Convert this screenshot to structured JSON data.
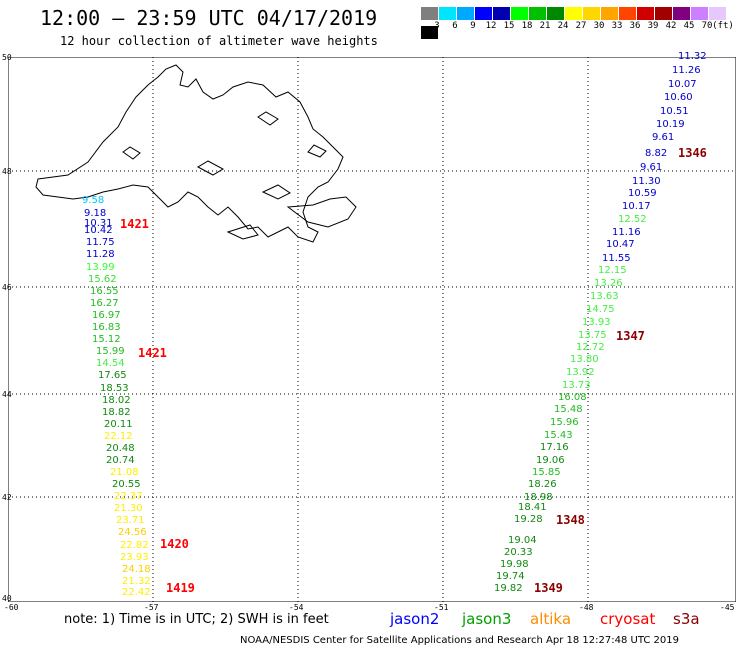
{
  "header": {
    "title": "12:00 – 23:59 UTC 04/17/2019",
    "subtitle": "12 hour collection of altimeter wave heights"
  },
  "colorbar": {
    "unit": "(ft)",
    "colors": [
      "#7f7f7f",
      "#00e5ff",
      "#00a8ff",
      "#0000ff",
      "#0000b0",
      "#00ff00",
      "#00c000",
      "#008800",
      "#ffff00",
      "#ffd700",
      "#ffa500",
      "#ff4500",
      "#d00000",
      "#a00000",
      "#800080",
      "#cc80ff",
      "#e6c8ff",
      "#000000"
    ],
    "labels": [
      "3",
      "6",
      "9",
      "12",
      "15",
      "18",
      "21",
      "24",
      "27",
      "30",
      "33",
      "36",
      "39",
      "42",
      "45",
      "70"
    ]
  },
  "axes": {
    "lat_labels": [
      "50",
      "48",
      "46",
      "44",
      "42",
      "40"
    ],
    "lon_labels": [
      "-60",
      "-57",
      "-54",
      "-51",
      "-48",
      "-45"
    ]
  },
  "tracks": [
    {
      "time": "1421",
      "points": [
        {
          "v": "9.58",
          "c": "#00c8ff"
        },
        {
          "v": "9.18",
          "c": "#0000cc"
        },
        {
          "v": "10.31",
          "c": "#0000cc"
        },
        {
          "v": "10.42",
          "c": "#0000cc"
        },
        {
          "v": "11.75",
          "c": "#0000cc"
        },
        {
          "v": "11.28",
          "c": "#0000cc"
        },
        {
          "v": "13.99",
          "c": "#33ff33"
        },
        {
          "v": "15.62",
          "c": "#33dd33"
        },
        {
          "v": "16.55",
          "c": "#22bb22"
        },
        {
          "v": "16.27",
          "c": "#22bb22"
        },
        {
          "v": "16.97",
          "c": "#22bb22"
        },
        {
          "v": "16.83",
          "c": "#22bb22"
        },
        {
          "v": "15.12",
          "c": "#22bb22"
        },
        {
          "v": "15.99",
          "c": "#22bb22"
        },
        {
          "v": "14.54",
          "c": "#44ee44"
        },
        {
          "v": "17.65",
          "c": "#118811"
        },
        {
          "v": "18.53",
          "c": "#118811"
        },
        {
          "v": "18.02",
          "c": "#118811"
        },
        {
          "v": "18.82",
          "c": "#118811"
        },
        {
          "v": "20.11",
          "c": "#118811"
        },
        {
          "v": "22.12",
          "c": "#ffee00"
        },
        {
          "v": "20.48",
          "c": "#118811"
        },
        {
          "v": "20.74",
          "c": "#118811"
        },
        {
          "v": "21.08",
          "c": "#ffee00"
        },
        {
          "v": "20.55",
          "c": "#118811"
        },
        {
          "v": "22.37",
          "c": "#ffee00"
        },
        {
          "v": "21.30",
          "c": "#ffee00"
        },
        {
          "v": "23.71",
          "c": "#ffee00"
        },
        {
          "v": "24.56",
          "c": "#ffcc00"
        },
        {
          "v": "22.82",
          "c": "#ffee00"
        },
        {
          "v": "23.93",
          "c": "#ffee00"
        },
        {
          "v": "24.18",
          "c": "#ffcc00"
        },
        {
          "v": "21.32",
          "c": "#ffee00"
        },
        {
          "v": "22.42",
          "c": "#ffee00"
        }
      ]
    },
    {
      "time": "1347",
      "points": [
        {
          "v": "11.32",
          "c": "#0000cc"
        },
        {
          "v": "11.26",
          "c": "#0000cc"
        },
        {
          "v": "10.07",
          "c": "#0000cc"
        },
        {
          "v": "10.60",
          "c": "#0000cc"
        },
        {
          "v": "10.51",
          "c": "#0000cc"
        },
        {
          "v": "10.19",
          "c": "#0000cc"
        },
        {
          "v": "9.61",
          "c": "#0000cc"
        },
        {
          "v": "8.82",
          "c": "#0000cc"
        },
        {
          "v": "9.61",
          "c": "#0000cc"
        },
        {
          "v": "11.30",
          "c": "#0000cc"
        },
        {
          "v": "10.59",
          "c": "#0000cc"
        },
        {
          "v": "10.17",
          "c": "#0000cc"
        },
        {
          "v": "12.52",
          "c": "#44ee44"
        },
        {
          "v": "11.16",
          "c": "#0000cc"
        },
        {
          "v": "10.47",
          "c": "#0000cc"
        },
        {
          "v": "11.55",
          "c": "#0000cc"
        },
        {
          "v": "12.15",
          "c": "#44ee44"
        },
        {
          "v": "13.26",
          "c": "#44ee44"
        },
        {
          "v": "13.63",
          "c": "#44ee44"
        },
        {
          "v": "14.75",
          "c": "#44ee44"
        },
        {
          "v": "13.93",
          "c": "#44ee44"
        },
        {
          "v": "13.75",
          "c": "#44ee44"
        },
        {
          "v": "12.72",
          "c": "#44ee44"
        },
        {
          "v": "13.80",
          "c": "#44ee44"
        },
        {
          "v": "13.92",
          "c": "#44ee44"
        },
        {
          "v": "13.73",
          "c": "#44ee44"
        },
        {
          "v": "16.08",
          "c": "#22bb22"
        },
        {
          "v": "15.48",
          "c": "#22bb22"
        },
        {
          "v": "15.96",
          "c": "#22bb22"
        },
        {
          "v": "15.43",
          "c": "#22bb22"
        },
        {
          "v": "17.16",
          "c": "#118811"
        },
        {
          "v": "19.06",
          "c": "#118811"
        },
        {
          "v": "15.85",
          "c": "#22bb22"
        },
        {
          "v": "18.26",
          "c": "#118811"
        },
        {
          "v": "18.98",
          "c": "#118811"
        },
        {
          "v": "18.41",
          "c": "#118811"
        },
        {
          "v": "19.28",
          "c": "#118811"
        },
        {
          "v": "19.04",
          "c": "#118811"
        },
        {
          "v": "20.33",
          "c": "#118811"
        },
        {
          "v": "19.98",
          "c": "#118811"
        },
        {
          "v": "19.74",
          "c": "#118811"
        },
        {
          "v": "19.82",
          "c": "#118811"
        }
      ]
    }
  ],
  "time_labels": [
    {
      "text": "1346",
      "c": "#8b0000"
    },
    {
      "text": "1421",
      "c": "#ff0000"
    },
    {
      "text": "1421",
      "c": "#ff0000"
    },
    {
      "text": "1347",
      "c": "#8b0000"
    },
    {
      "text": "1348",
      "c": "#8b0000"
    },
    {
      "text": "1420",
      "c": "#ff0000"
    },
    {
      "text": "1349",
      "c": "#8b0000"
    },
    {
      "text": "1419",
      "c": "#ff0000"
    }
  ],
  "footer": {
    "note": "note: 1) Time is in UTC; 2) SWH is in feet",
    "satellites": [
      {
        "name": "jason2",
        "c": "#0000ff"
      },
      {
        "name": "jason3",
        "c": "#00a000"
      },
      {
        "name": "altika",
        "c": "#ff8c00"
      },
      {
        "name": "cryosat",
        "c": "#ff0000"
      },
      {
        "name": "s3a",
        "c": "#8b0000"
      }
    ],
    "credit": "NOAA/NESDIS Center for Satellite Applications and Research   Apr 18 12:27:48 UTC 2019"
  }
}
